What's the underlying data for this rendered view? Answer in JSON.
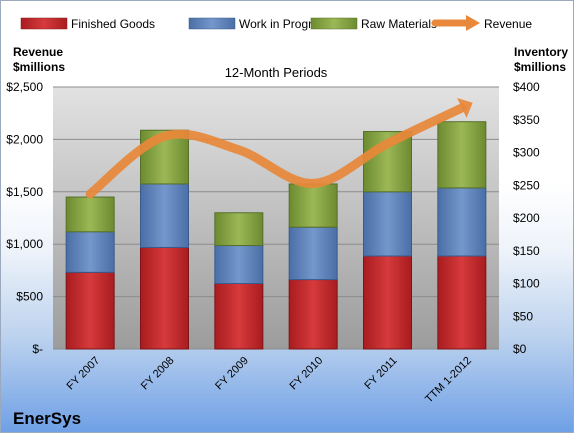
{
  "chart_data": {
    "type": "bar",
    "title": "12-Month Periods",
    "left_axis_label": [
      "Revenue",
      "$millions"
    ],
    "right_axis_label": [
      "Inventory",
      "$millions"
    ],
    "categories": [
      "FY 2007",
      "FY 2008",
      "FY 2009",
      "FY 2010",
      "FY 2011",
      "TTM 1-2012"
    ],
    "left_ticks": [
      "$-",
      "$500",
      "$1,000",
      "$1,500",
      "$2,000",
      "$2,500"
    ],
    "right_ticks": [
      "$0",
      "$50",
      "$100",
      "$150",
      "$200",
      "$250",
      "$300",
      "$350",
      "$400"
    ],
    "ylim_left": [
      0,
      2500
    ],
    "ylim_right": [
      0,
      400
    ],
    "stacked": true,
    "series": [
      {
        "name": "Finished Goods",
        "axis": "right",
        "color": "#c0282b",
        "values": [
          117,
          155,
          100,
          106,
          142,
          142
        ]
      },
      {
        "name": "Work in Progress",
        "axis": "right",
        "color": "#5b7fb7",
        "values": [
          62,
          97,
          58,
          80,
          98,
          104
        ]
      },
      {
        "name": "Raw Materials",
        "axis": "right",
        "color": "#7f9d3c",
        "values": [
          53,
          82,
          50,
          66,
          92,
          101
        ]
      },
      {
        "name": "Revenue",
        "axis": "left",
        "type": "line",
        "color": "#e8883a",
        "values": [
          1480,
          2030,
          1900,
          1580,
          1960,
          2300
        ]
      }
    ],
    "legend_position": "top",
    "grid": true
  },
  "company": "EnerSys"
}
